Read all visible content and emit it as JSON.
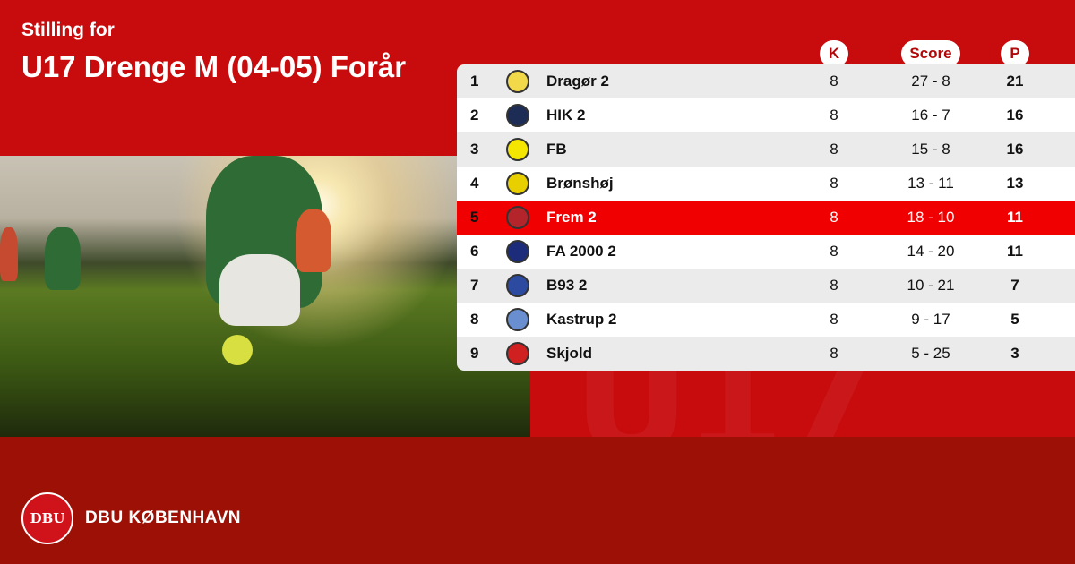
{
  "header": {
    "subtitle": "Stilling for",
    "title": "U17 Drenge M (04-05) Forår"
  },
  "columns": {
    "k": "K",
    "score": "Score",
    "p": "P"
  },
  "colors": {
    "primary_red": "#c80c0e",
    "footer_red": "#9c1006",
    "highlight_row": "#f00000"
  },
  "standings": [
    {
      "pos": "1",
      "team": "Dragør 2",
      "k": "8",
      "score": "27 - 8",
      "p": "21",
      "logo": "#f2d94a"
    },
    {
      "pos": "2",
      "team": "HIK 2",
      "k": "8",
      "score": "16 - 7",
      "p": "16",
      "logo": "#1c2c55"
    },
    {
      "pos": "3",
      "team": "FB",
      "k": "8",
      "score": "15 - 8",
      "p": "16",
      "logo": "#f4e600"
    },
    {
      "pos": "4",
      "team": "Brønshøj",
      "k": "8",
      "score": "13 - 11",
      "p": "13",
      "logo": "#e8d000"
    },
    {
      "pos": "5",
      "team": "Frem 2",
      "k": "8",
      "score": "18 - 10",
      "p": "11",
      "logo": "#b3252a",
      "highlight": true
    },
    {
      "pos": "6",
      "team": "FA 2000 2",
      "k": "8",
      "score": "14 - 20",
      "p": "11",
      "logo": "#1c2c7a"
    },
    {
      "pos": "7",
      "team": "B93 2",
      "k": "8",
      "score": "10 - 21",
      "p": "7",
      "logo": "#2b4aa0"
    },
    {
      "pos": "8",
      "team": "Kastrup 2",
      "k": "8",
      "score": "9 - 17",
      "p": "5",
      "logo": "#6a8fd0"
    },
    {
      "pos": "9",
      "team": "Skjold",
      "k": "8",
      "score": "5 - 25",
      "p": "3",
      "logo": "#d02020"
    }
  ],
  "footer": {
    "org": "DBU KØBENHAVN",
    "logo_text": "DBU"
  }
}
